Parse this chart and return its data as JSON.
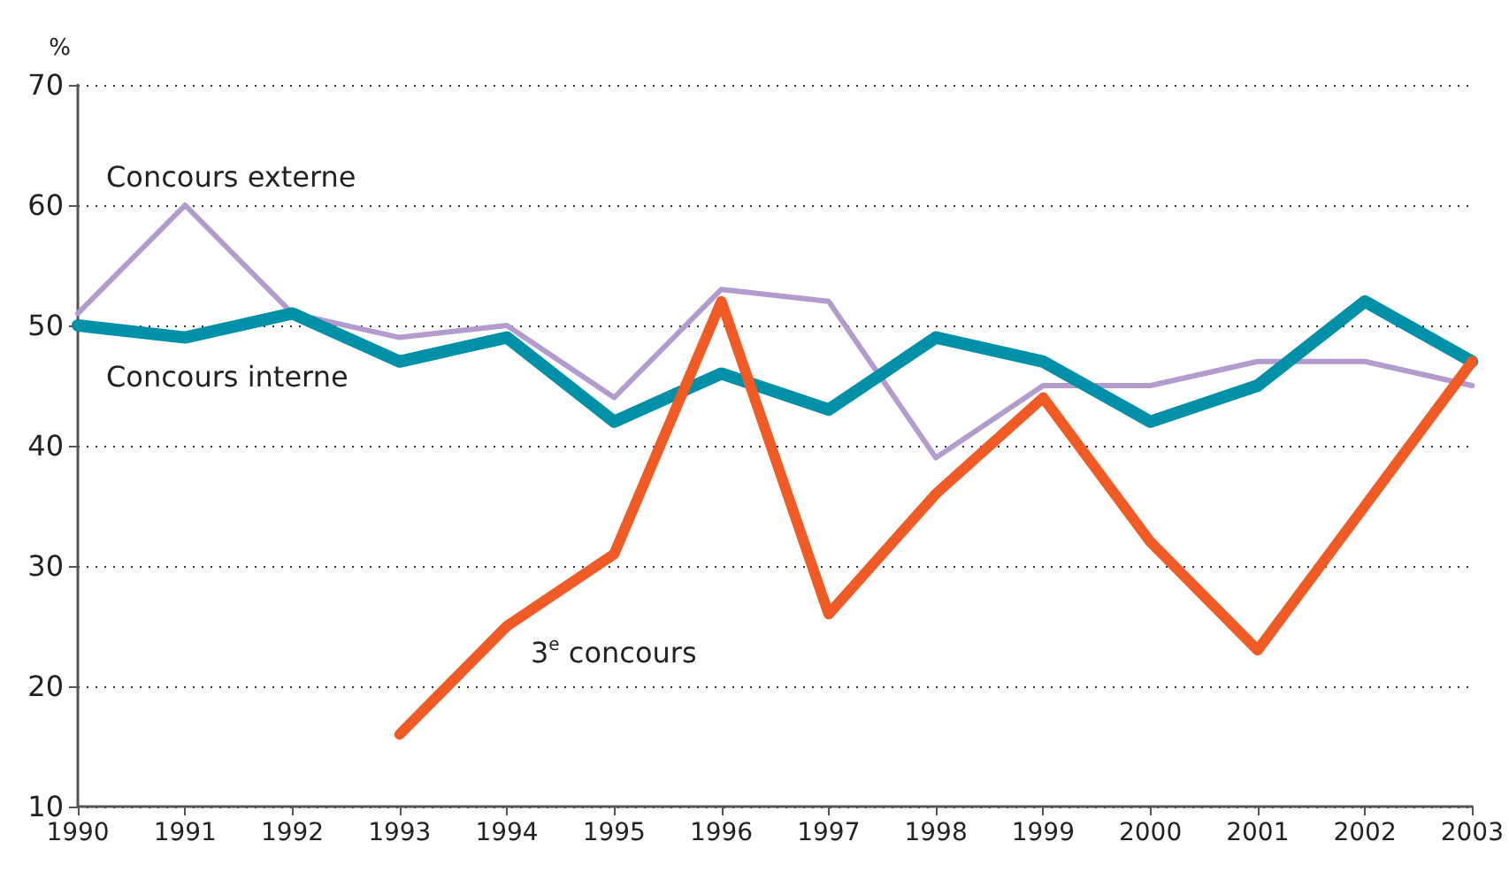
{
  "chart_data": {
    "type": "line",
    "ylabel": "%",
    "categories": [
      "1990",
      "1991",
      "1992",
      "1993",
      "1994",
      "1995",
      "1996",
      "1997",
      "1998",
      "1999",
      "2000",
      "2001",
      "2002",
      "2003"
    ],
    "series": [
      {
        "name": "Concours externe",
        "color": "#b39ccd",
        "values": [
          51,
          60,
          51,
          49,
          50,
          44,
          53,
          52,
          39,
          45,
          45,
          47,
          47,
          45
        ]
      },
      {
        "name": "Concours interne",
        "color": "#0090a8",
        "values": [
          50,
          49,
          51,
          47,
          49,
          42,
          46,
          43,
          49,
          47,
          42,
          45,
          52,
          47
        ]
      },
      {
        "name": "3$^{e}$ concours",
        "color": "#f05a24",
        "values": [
          null,
          null,
          null,
          16,
          25,
          31,
          52,
          26,
          36,
          44,
          32,
          23,
          35,
          47
        ]
      }
    ],
    "ylim": [
      10,
      70
    ],
    "yticks": [
      10,
      20,
      30,
      40,
      50,
      60,
      70
    ],
    "grid": "y",
    "legend": false,
    "marker": "none",
    "line_style": "solid"
  }
}
